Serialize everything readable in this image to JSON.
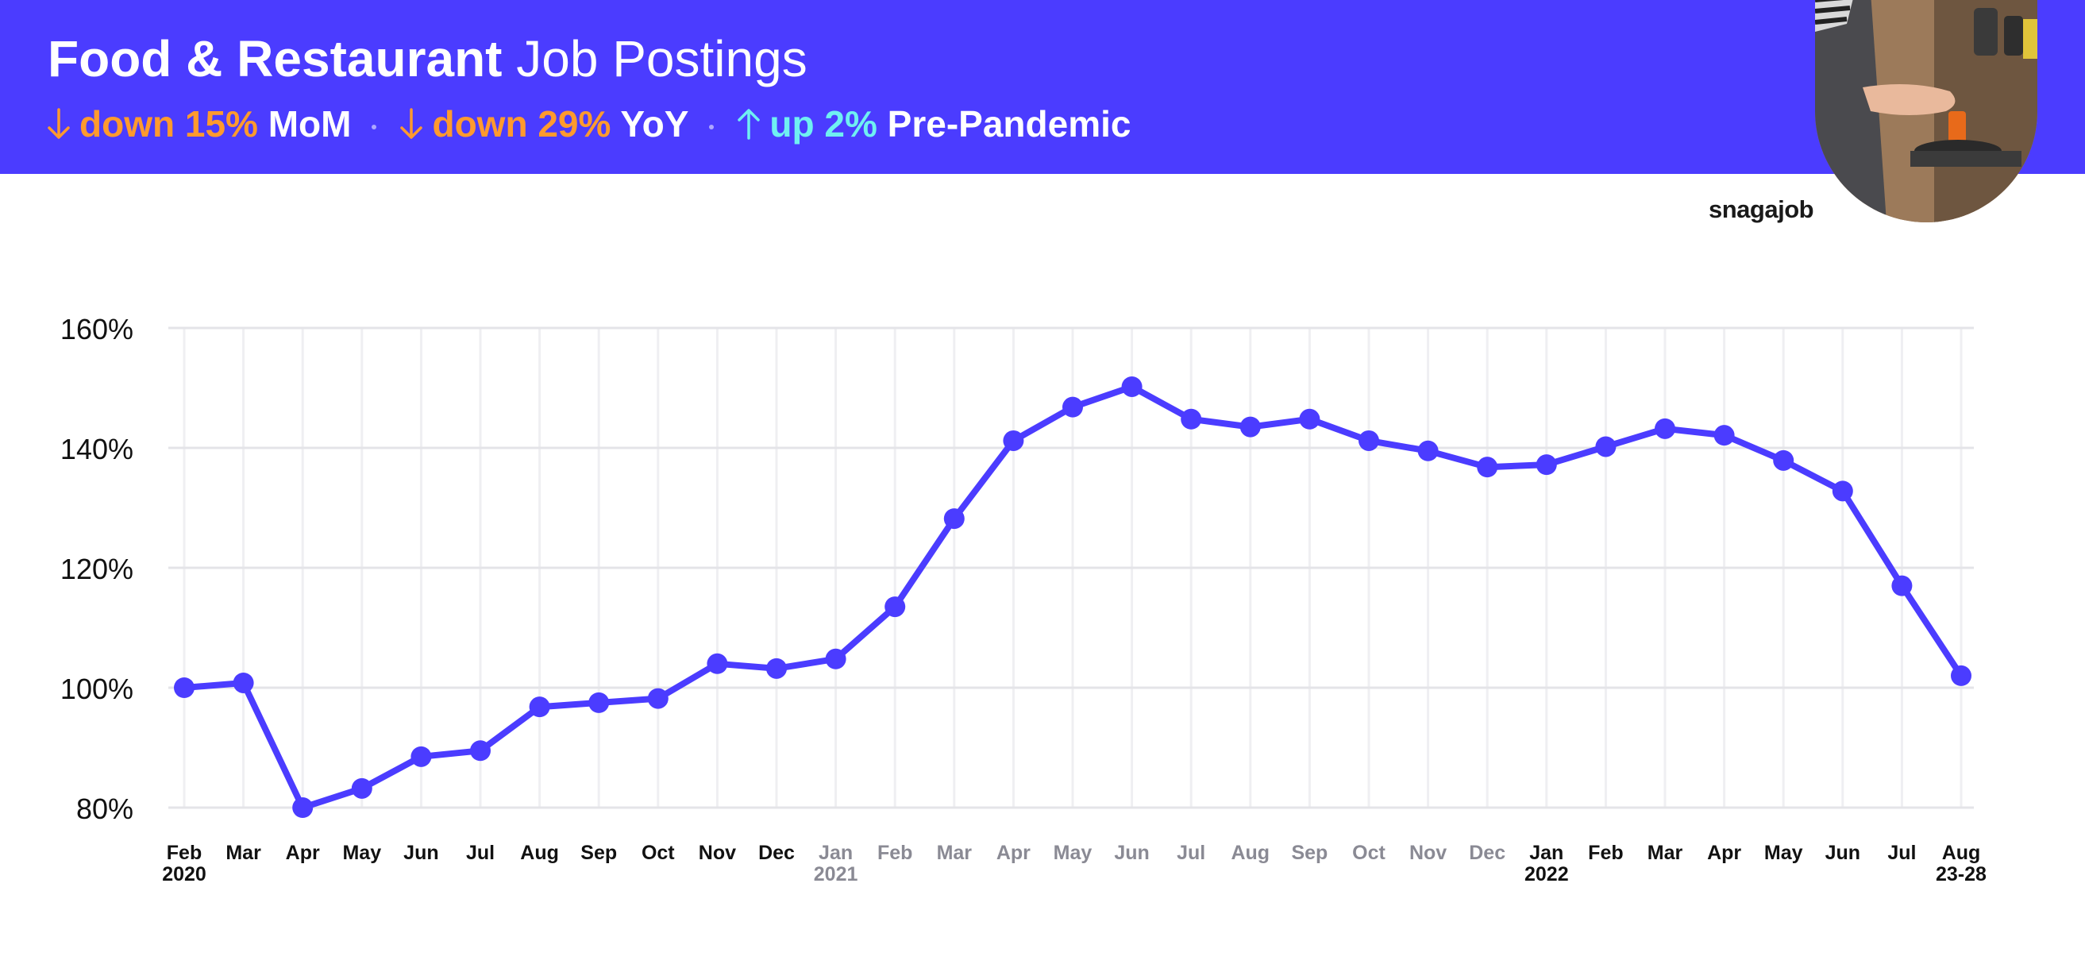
{
  "header": {
    "title_bold": "Food & Restaurant",
    "title_light": "Job Postings",
    "stats": [
      {
        "direction": "down",
        "value": "down 15%",
        "label": "MoM"
      },
      {
        "direction": "down",
        "value": "down 29%",
        "label": "YoY"
      },
      {
        "direction": "up",
        "value": "up 2%",
        "label": "Pre-Pandemic"
      }
    ]
  },
  "brand": "snagajob",
  "colors": {
    "header_bg": "#4b3cff",
    "line": "#4b3cff",
    "down": "#ff9a2e",
    "up": "#6ff0f2",
    "tick_dark": "#111111",
    "tick_muted": "#8a8a94"
  },
  "chart_data": {
    "type": "line",
    "y_tick_labels": [
      "80%",
      "100%",
      "120%",
      "140%",
      "160%"
    ],
    "y_ticks": [
      80,
      100,
      120,
      140,
      160
    ],
    "ylim": [
      80,
      160
    ],
    "grid": true,
    "categories": [
      {
        "label": "Feb",
        "sub": "2020",
        "muted": false
      },
      {
        "label": "Mar",
        "sub": "",
        "muted": false
      },
      {
        "label": "Apr",
        "sub": "",
        "muted": false
      },
      {
        "label": "May",
        "sub": "",
        "muted": false
      },
      {
        "label": "Jun",
        "sub": "",
        "muted": false
      },
      {
        "label": "Jul",
        "sub": "",
        "muted": false
      },
      {
        "label": "Aug",
        "sub": "",
        "muted": false
      },
      {
        "label": "Sep",
        "sub": "",
        "muted": false
      },
      {
        "label": "Oct",
        "sub": "",
        "muted": false
      },
      {
        "label": "Nov",
        "sub": "",
        "muted": false
      },
      {
        "label": "Dec",
        "sub": "",
        "muted": false
      },
      {
        "label": "Jan",
        "sub": "2021",
        "muted": true
      },
      {
        "label": "Feb",
        "sub": "",
        "muted": true
      },
      {
        "label": "Mar",
        "sub": "",
        "muted": true
      },
      {
        "label": "Apr",
        "sub": "",
        "muted": true
      },
      {
        "label": "May",
        "sub": "",
        "muted": true
      },
      {
        "label": "Jun",
        "sub": "",
        "muted": true
      },
      {
        "label": "Jul",
        "sub": "",
        "muted": true
      },
      {
        "label": "Aug",
        "sub": "",
        "muted": true
      },
      {
        "label": "Sep",
        "sub": "",
        "muted": true
      },
      {
        "label": "Oct",
        "sub": "",
        "muted": true
      },
      {
        "label": "Nov",
        "sub": "",
        "muted": true
      },
      {
        "label": "Dec",
        "sub": "",
        "muted": true
      },
      {
        "label": "Jan",
        "sub": "2022",
        "muted": false
      },
      {
        "label": "Feb",
        "sub": "",
        "muted": false
      },
      {
        "label": "Mar",
        "sub": "",
        "muted": false
      },
      {
        "label": "Apr",
        "sub": "",
        "muted": false
      },
      {
        "label": "May",
        "sub": "",
        "muted": false
      },
      {
        "label": "Jun",
        "sub": "",
        "muted": false
      },
      {
        "label": "Jul",
        "sub": "",
        "muted": false
      },
      {
        "label": "Aug",
        "sub": "23-28",
        "muted": false
      }
    ],
    "values": [
      100,
      100.8,
      80,
      83.2,
      88.5,
      89.5,
      96.8,
      97.5,
      98.2,
      104,
      103.2,
      104.8,
      113.5,
      128.2,
      141.2,
      146.8,
      150.2,
      144.8,
      143.5,
      144.8,
      141.2,
      139.5,
      136.8,
      137.2,
      140.2,
      143.2,
      142.1,
      137.9,
      132.8,
      117,
      102
    ]
  }
}
